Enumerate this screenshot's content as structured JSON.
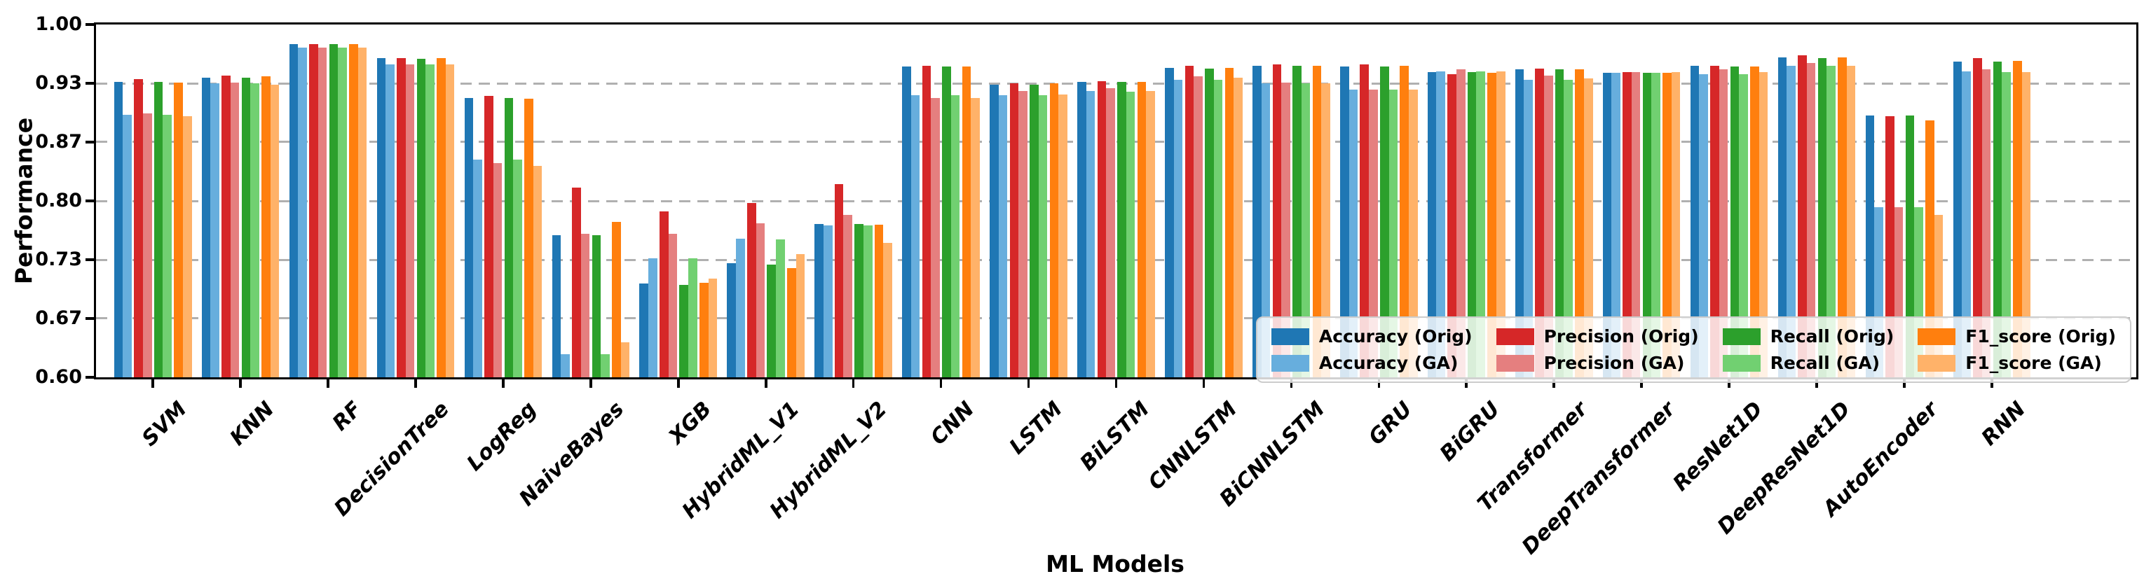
{
  "chart_data": {
    "type": "bar",
    "xlabel": "ML Models",
    "ylabel": "Performance",
    "ylim": [
      0.6,
      1.0
    ],
    "grid": "horizontal-dashed",
    "legend_position": "lower right",
    "yticks": [
      {
        "value": 1.0,
        "label": "1.00"
      },
      {
        "value": 0.9333,
        "label": "0.93"
      },
      {
        "value": 0.8667,
        "label": "0.87"
      },
      {
        "value": 0.8,
        "label": "0.80"
      },
      {
        "value": 0.7333,
        "label": "0.73"
      },
      {
        "value": 0.6667,
        "label": "0.67"
      },
      {
        "value": 0.6,
        "label": "0.60"
      }
    ],
    "categories": [
      "SVM",
      "KNN",
      "RF",
      "DecisionTree",
      "LogReg",
      "NaiveBayes",
      "XGB",
      "HybridML_V1",
      "HybridML_V2",
      "CNN",
      "LSTM",
      "BiLSTM",
      "CNNLSTM",
      "BiCNNLSTM",
      "GRU",
      "BiGRU",
      "Transformer",
      "DeepTransformer",
      "ResNet1D",
      "DeepResNet1D",
      "AutoEncoder",
      "RNN"
    ],
    "series": [
      {
        "name": "Accuracy (Orig)",
        "color": "#1f77b4",
        "values": [
          0.935,
          0.94,
          0.978,
          0.962,
          0.917,
          0.761,
          0.706,
          0.729,
          0.774,
          0.952,
          0.932,
          0.935,
          0.951,
          0.953,
          0.952,
          0.946,
          0.949,
          0.945,
          0.953,
          0.963,
          0.897,
          0.958
        ]
      },
      {
        "name": "Accuracy (GA)",
        "color": "#67aedd",
        "values": [
          0.898,
          0.933,
          0.974,
          0.955,
          0.847,
          0.626,
          0.735,
          0.757,
          0.772,
          0.92,
          0.92,
          0.925,
          0.937,
          0.933,
          0.926,
          0.947,
          0.937,
          0.945,
          0.944,
          0.953,
          0.793,
          0.947
        ]
      },
      {
        "name": "Precision (Orig)",
        "color": "#d62728",
        "values": [
          0.938,
          0.942,
          0.978,
          0.962,
          0.919,
          0.815,
          0.788,
          0.798,
          0.819,
          0.953,
          0.933,
          0.936,
          0.953,
          0.955,
          0.955,
          0.944,
          0.95,
          0.946,
          0.953,
          0.965,
          0.896,
          0.962
        ]
      },
      {
        "name": "Precision (GA)",
        "color": "#e57f7f",
        "values": [
          0.899,
          0.934,
          0.974,
          0.955,
          0.843,
          0.763,
          0.763,
          0.775,
          0.784,
          0.917,
          0.925,
          0.928,
          0.941,
          0.934,
          0.926,
          0.949,
          0.942,
          0.946,
          0.949,
          0.956,
          0.793,
          0.949
        ]
      },
      {
        "name": "Recall (Orig)",
        "color": "#2ca02c",
        "values": [
          0.935,
          0.94,
          0.978,
          0.961,
          0.917,
          0.761,
          0.705,
          0.728,
          0.774,
          0.952,
          0.932,
          0.935,
          0.95,
          0.953,
          0.952,
          0.946,
          0.949,
          0.945,
          0.952,
          0.962,
          0.897,
          0.958
        ]
      },
      {
        "name": "Recall (GA)",
        "color": "#71d071",
        "values": [
          0.898,
          0.933,
          0.974,
          0.955,
          0.847,
          0.626,
          0.735,
          0.756,
          0.772,
          0.92,
          0.92,
          0.924,
          0.937,
          0.933,
          0.926,
          0.947,
          0.937,
          0.945,
          0.944,
          0.953,
          0.793,
          0.946
        ]
      },
      {
        "name": "F1_score (Orig)",
        "color": "#ff7f0e",
        "values": [
          0.934,
          0.941,
          0.978,
          0.962,
          0.916,
          0.776,
          0.707,
          0.724,
          0.773,
          0.952,
          0.933,
          0.935,
          0.951,
          0.953,
          0.953,
          0.945,
          0.949,
          0.945,
          0.952,
          0.963,
          0.891,
          0.959
        ]
      },
      {
        "name": "F1_score (GA)",
        "color": "#ffb269",
        "values": [
          0.896,
          0.932,
          0.974,
          0.955,
          0.84,
          0.64,
          0.712,
          0.74,
          0.752,
          0.917,
          0.921,
          0.925,
          0.94,
          0.933,
          0.926,
          0.947,
          0.939,
          0.946,
          0.946,
          0.953,
          0.784,
          0.946
        ]
      }
    ]
  }
}
